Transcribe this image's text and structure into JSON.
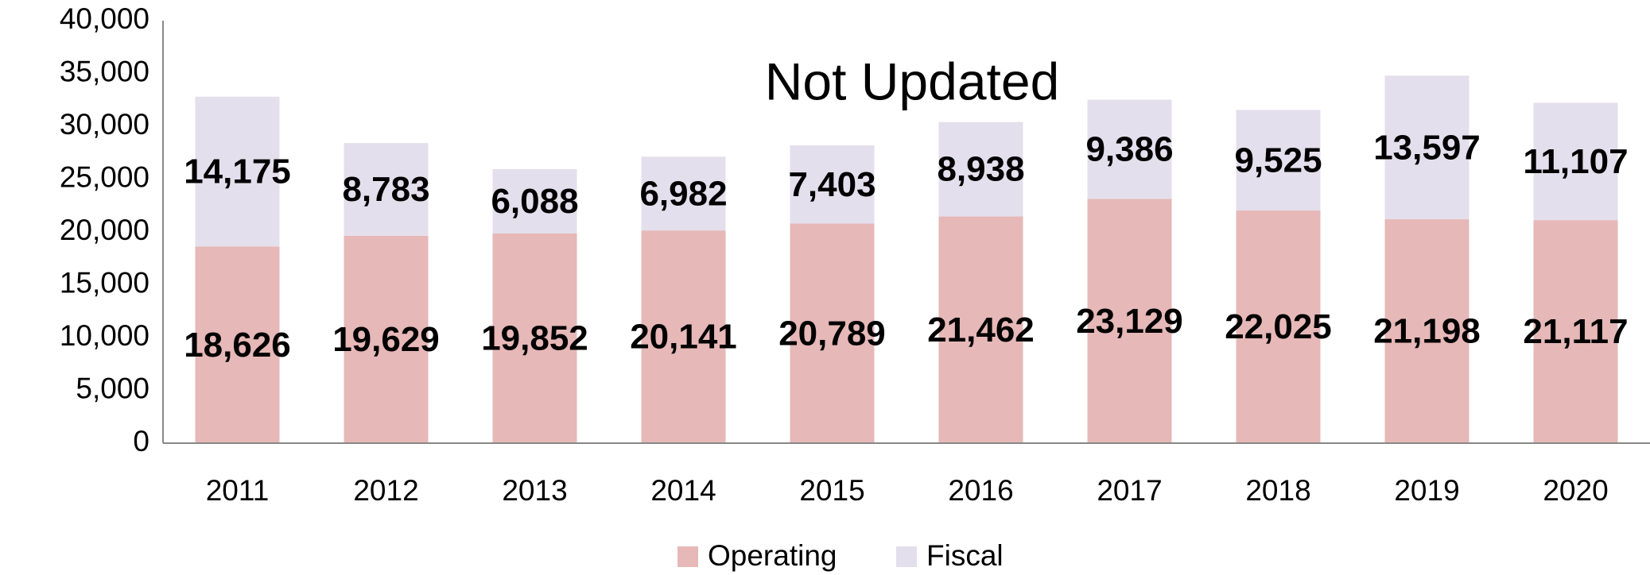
{
  "chart_data": {
    "type": "stacked-bar",
    "title": "Not Updated",
    "categories": [
      "2011",
      "2012",
      "2013",
      "2014",
      "2015",
      "2016",
      "2017",
      "2018",
      "2019",
      "2020"
    ],
    "series": [
      {
        "name": "Operating",
        "color": "#e6b8b7",
        "values": [
          18626,
          19629,
          19852,
          20141,
          20789,
          21462,
          23129,
          22025,
          21198,
          21117
        ],
        "value_labels": [
          "18,626",
          "19,629",
          "19,852",
          "20,141",
          "20,789",
          "21,462",
          "23,129",
          "22,025",
          "21,198",
          "21,117"
        ]
      },
      {
        "name": "Fiscal",
        "color": "#e4dfec",
        "values": [
          14175,
          8783,
          6088,
          6982,
          7403,
          8938,
          9386,
          9525,
          13597,
          11107
        ],
        "value_labels": [
          "14,175",
          "8,783",
          "6,088",
          "6,982",
          "7,403",
          "8,938",
          "9,386",
          "9,525",
          "13,597",
          "11,107"
        ]
      }
    ],
    "ylim": [
      0,
      40000
    ],
    "yticks": [
      0,
      {
        "value": 5000,
        "label": "5,000"
      },
      {
        "value": 10000,
        "label": "10,000"
      },
      {
        "value": 15000,
        "label": "15,000"
      },
      {
        "value": 20000,
        "label": "20,000"
      },
      {
        "value": 25000,
        "label": "25,000"
      },
      {
        "value": 30000,
        "label": "30,000"
      },
      {
        "value": 35000,
        "label": "35,000"
      },
      {
        "value": 40000,
        "label": "40,000"
      }
    ],
    "legend": "bottom",
    "grid": false
  }
}
